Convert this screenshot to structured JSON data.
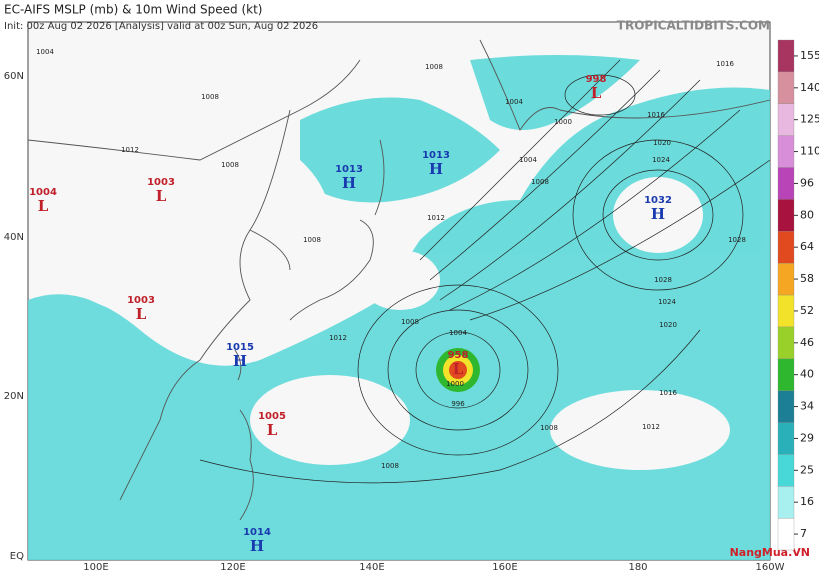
{
  "header": {
    "title": "EC-AIFS MSLP (mb) & 10m Wind Speed (kt)",
    "subtitle": "Init: 00z Aug 02 2026   [Analysis]   valid at 00z Sun, Aug 02 2026",
    "source": "TROPICALTIDBITS.COM"
  },
  "map": {
    "lat_labels": [
      "60N",
      "40N",
      "20N",
      "EQ"
    ],
    "lon_labels": [
      "100E",
      "120E",
      "140E",
      "160E",
      "180",
      "160W"
    ],
    "pressure_centers": [
      {
        "symbol": "L",
        "value": "1004"
      },
      {
        "symbol": "L",
        "value": "1003"
      },
      {
        "symbol": "H",
        "value": "1013"
      },
      {
        "symbol": "H",
        "value": "1013"
      },
      {
        "symbol": "L",
        "value": "998"
      },
      {
        "symbol": "H",
        "value": "1032"
      },
      {
        "symbol": "L",
        "value": "1003"
      },
      {
        "symbol": "H",
        "value": "1015"
      },
      {
        "symbol": "L",
        "value": "958"
      },
      {
        "symbol": "L",
        "value": "1005"
      },
      {
        "symbol": "H",
        "value": "1014"
      }
    ],
    "isobar_labels": [
      "1004",
      "1008",
      "1012",
      "1008",
      "1004",
      "1000",
      "1004",
      "1008",
      "1012",
      "1016",
      "1020",
      "1024",
      "1028",
      "1028",
      "1024",
      "1020",
      "1016",
      "1012",
      "1008",
      "1004",
      "1000",
      "996",
      "1008",
      "1008",
      "1012",
      "1008",
      "1016",
      "1008"
    ]
  },
  "colorbar": {
    "ticks": [
      7,
      16,
      25,
      29,
      34,
      40,
      46,
      52,
      58,
      64,
      80,
      96,
      110,
      125,
      140,
      155
    ],
    "colors": [
      "#ffffff",
      "#a8f0f0",
      "#48d8d8",
      "#2ab0b8",
      "#1c7f96",
      "#2fb82f",
      "#9ad02a",
      "#f2e22a",
      "#f5a623",
      "#e04a1e",
      "#a8123e",
      "#b844b8",
      "#d88ed8",
      "#e8b8e0",
      "#d6909e",
      "#a83460"
    ]
  },
  "watermark": "NangMua.VN"
}
